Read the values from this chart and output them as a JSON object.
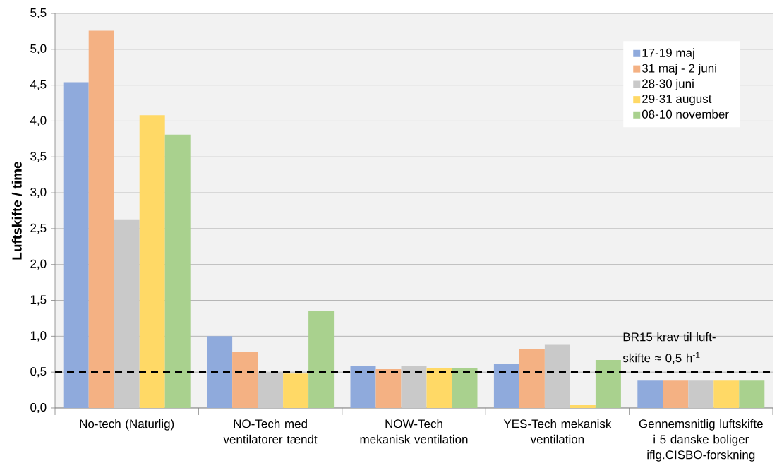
{
  "chart_data": {
    "type": "bar",
    "ylabel": "Luftskifte / time",
    "categories": [
      "No-tech (Naturlig)",
      "NO-Tech med ventilatorer tændt",
      "NOW-Tech mekanisk ventilation",
      "YES-Tech mekanisk ventilation",
      "Gennemsnitlig luftskifte i 5 danske boliger iflg.CISBO-forskning"
    ],
    "series": [
      {
        "name": "17-19 maj",
        "color": "#8faadc",
        "values": [
          4.54,
          1.0,
          0.59,
          0.61,
          0.38
        ]
      },
      {
        "name": "31 maj - 2 juni",
        "color": "#f4b183",
        "values": [
          5.26,
          0.78,
          0.54,
          0.82,
          0.38
        ]
      },
      {
        "name": "28-30 juni",
        "color": "#c9c9c9",
        "values": [
          2.63,
          0.49,
          0.59,
          0.88,
          0.38
        ]
      },
      {
        "name": "29-31 august",
        "color": "#ffd966",
        "values": [
          4.08,
          0.48,
          0.55,
          0.04,
          0.38
        ]
      },
      {
        "name": "08-10 november",
        "color": "#a9d18e",
        "values": [
          3.81,
          1.35,
          0.56,
          0.67,
          0.38
        ]
      }
    ],
    "ylim": [
      0,
      5.5
    ],
    "yticks": [
      {
        "value": 0,
        "label": "0,0"
      },
      {
        "value": 0.5,
        "label": "0,5"
      },
      {
        "value": 1,
        "label": "1,0"
      },
      {
        "value": 1.5,
        "label": "1,5"
      },
      {
        "value": 2,
        "label": "2,0"
      },
      {
        "value": 2.5,
        "label": "2,5"
      },
      {
        "value": 3,
        "label": "3,0"
      },
      {
        "value": 3.5,
        "label": "3,5"
      },
      {
        "value": 4,
        "label": "4,0"
      },
      {
        "value": 4.5,
        "label": "4,5"
      },
      {
        "value": 5,
        "label": "5,0"
      },
      {
        "value": 5.5,
        "label": "5,5"
      }
    ],
    "ref_lines": [
      {
        "axis": "y",
        "value": 0.5,
        "label": "BR15 krav til luft-skifte ≈ 0,5 h$^{-1}$",
        "color": "#000000",
        "line_style": "dashed"
      }
    ],
    "grid": "y",
    "legend": "top right"
  }
}
